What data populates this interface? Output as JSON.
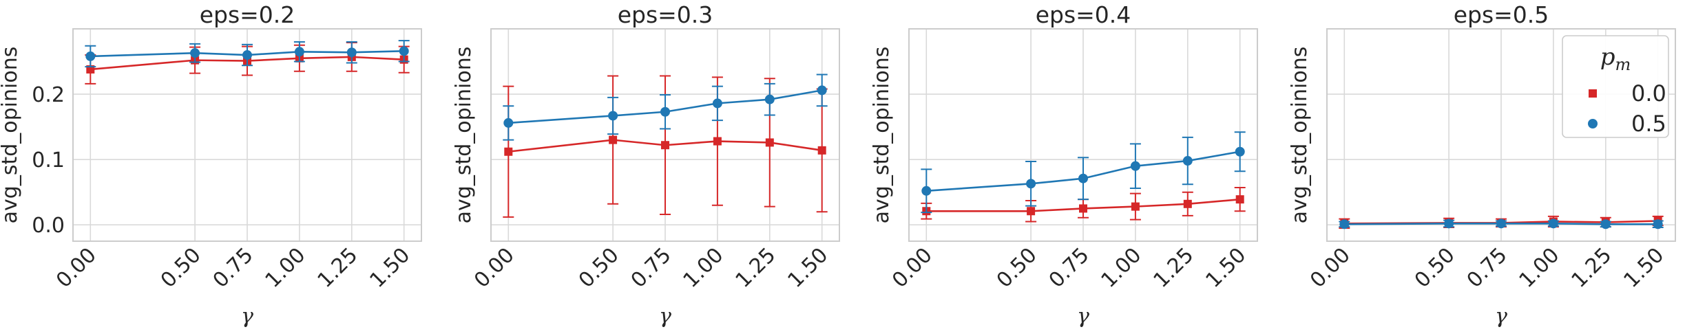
{
  "colors": {
    "series_0": "#d62728",
    "series_1": "#1f77b4",
    "grid": "#d9d9d9",
    "frame": "#cccccc",
    "text": "#262626"
  },
  "legend": {
    "title": "p",
    "title_subscript": "m",
    "placement": "top-right",
    "panel_index": 3,
    "entries": [
      {
        "label": "0.0",
        "marker": "square"
      },
      {
        "label": "0.5",
        "marker": "circle"
      }
    ]
  },
  "chart_data": [
    {
      "type": "line",
      "title": "eps=0.2",
      "xlabel": "γ",
      "ylabel": "avg_std_opinions",
      "x": [
        0.0,
        0.5,
        0.75,
        1.0,
        1.25,
        1.5
      ],
      "xtick_labels": [
        "0.00",
        "0.50",
        "0.75",
        "1.00",
        "1.25",
        "1.50"
      ],
      "ylim": [
        -0.025,
        0.3
      ],
      "yticks": [
        0.0,
        0.1,
        0.2
      ],
      "ytick_labels": [
        "0.0",
        "0.1",
        "0.2"
      ],
      "grid": true,
      "series": [
        {
          "legend_index": 0,
          "marker": "square",
          "values": [
            0.238,
            0.252,
            0.251,
            0.255,
            0.257,
            0.253
          ],
          "err": [
            0.022,
            0.02,
            0.022,
            0.02,
            0.022,
            0.02
          ]
        },
        {
          "legend_index": 1,
          "marker": "circle",
          "values": [
            0.258,
            0.263,
            0.26,
            0.265,
            0.264,
            0.266
          ],
          "err": [
            0.016,
            0.014,
            0.016,
            0.015,
            0.016,
            0.016
          ]
        }
      ]
    },
    {
      "type": "line",
      "title": "eps=0.3",
      "xlabel": "γ",
      "ylabel": "avg_std_opinions",
      "x": [
        0.0,
        0.5,
        0.75,
        1.0,
        1.25,
        1.5
      ],
      "xtick_labels": [
        "0.00",
        "0.50",
        "0.75",
        "1.00",
        "1.25",
        "1.50"
      ],
      "ylim": [
        -0.025,
        0.3
      ],
      "yticks": [
        0.0,
        0.1,
        0.2
      ],
      "ytick_labels": [
        "",
        "",
        ""
      ],
      "grid": true,
      "series": [
        {
          "legend_index": 0,
          "marker": "square",
          "values": [
            0.112,
            0.13,
            0.122,
            0.128,
            0.126,
            0.114
          ],
          "err": [
            0.1,
            0.098,
            0.106,
            0.098,
            0.098,
            0.094
          ]
        },
        {
          "legend_index": 1,
          "marker": "circle",
          "values": [
            0.156,
            0.167,
            0.173,
            0.186,
            0.192,
            0.206
          ],
          "err": [
            0.026,
            0.028,
            0.026,
            0.026,
            0.024,
            0.024
          ]
        }
      ]
    },
    {
      "type": "line",
      "title": "eps=0.4",
      "xlabel": "γ",
      "ylabel": "avg_std_opinions",
      "x": [
        0.0,
        0.5,
        0.75,
        1.0,
        1.25,
        1.5
      ],
      "xtick_labels": [
        "0.00",
        "0.50",
        "0.75",
        "1.00",
        "1.25",
        "1.50"
      ],
      "ylim": [
        -0.025,
        0.3
      ],
      "yticks": [
        0.0,
        0.1,
        0.2
      ],
      "ytick_labels": [
        "",
        "",
        ""
      ],
      "grid": true,
      "series": [
        {
          "legend_index": 0,
          "marker": "square",
          "values": [
            0.021,
            0.021,
            0.025,
            0.028,
            0.032,
            0.039
          ],
          "err": [
            0.012,
            0.016,
            0.014,
            0.02,
            0.018,
            0.018
          ]
        },
        {
          "legend_index": 1,
          "marker": "circle",
          "values": [
            0.052,
            0.063,
            0.071,
            0.09,
            0.098,
            0.112
          ],
          "err": [
            0.033,
            0.034,
            0.032,
            0.034,
            0.036,
            0.03
          ]
        }
      ]
    },
    {
      "type": "line",
      "title": "eps=0.5",
      "xlabel": "γ",
      "ylabel": "avg_std_opinions",
      "x": [
        0.0,
        0.5,
        0.75,
        1.0,
        1.25,
        1.5
      ],
      "xtick_labels": [
        "0.00",
        "0.50",
        "0.75",
        "1.00",
        "1.25",
        "1.50"
      ],
      "ylim": [
        -0.025,
        0.3
      ],
      "yticks": [
        0.0,
        0.1,
        0.2
      ],
      "ytick_labels": [
        "",
        "",
        ""
      ],
      "grid": true,
      "series": [
        {
          "legend_index": 0,
          "marker": "square",
          "values": [
            0.002,
            0.003,
            0.003,
            0.005,
            0.004,
            0.006
          ],
          "err": [
            0.007,
            0.007,
            0.006,
            0.008,
            0.007,
            0.007
          ]
        },
        {
          "legend_index": 1,
          "marker": "circle",
          "values": [
            0.001,
            0.002,
            0.002,
            0.002,
            0.001,
            0.001
          ],
          "err": [
            0.004,
            0.005,
            0.004,
            0.004,
            0.004,
            0.005
          ]
        }
      ]
    }
  ]
}
